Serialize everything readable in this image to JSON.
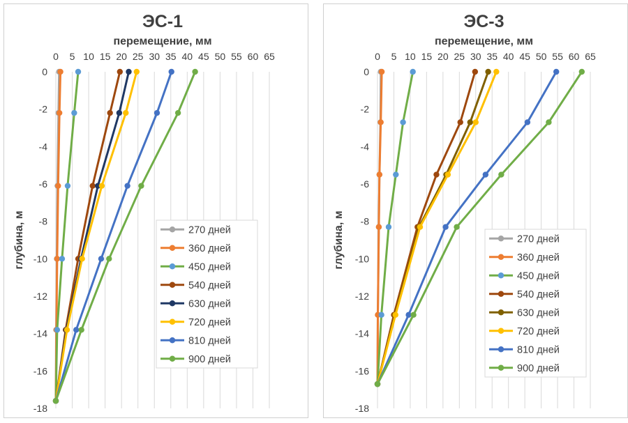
{
  "chart_data": [
    {
      "type": "line",
      "title": "ЭС-1",
      "xlabel": "перемещение, мм",
      "ylabel": "глубина, м",
      "x_ticks": [
        "0",
        "5",
        "10",
        "15",
        "20",
        "25",
        "30",
        "35",
        "40",
        "45",
        "50",
        "55",
        "60",
        "65"
      ],
      "y_ticks": [
        "0",
        "-2",
        "-4",
        "-6",
        "-8",
        "-10",
        "-12",
        "-14",
        "-16",
        "-18"
      ],
      "xlim": [
        0,
        65
      ],
      "ylim": [
        -18,
        0
      ],
      "x_axis_position": "top",
      "grid": "vertical",
      "legend_position": "bottom-right",
      "series": [
        {
          "name": "270 дней",
          "color": "#a5a5a5",
          "points": [
            [
              1,
              0
            ],
            [
              0.8,
              -2.2
            ],
            [
              0.5,
              -6.1
            ],
            [
              0.3,
              -10
            ],
            [
              0.1,
              -13.8
            ],
            [
              0,
              -17.6
            ]
          ]
        },
        {
          "name": "360 дней",
          "color": "#ed7d31",
          "points": [
            [
              1.4,
              0
            ],
            [
              1.1,
              -2.2
            ],
            [
              0.7,
              -6.1
            ],
            [
              0.4,
              -10
            ],
            [
              0.2,
              -13.8
            ],
            [
              0,
              -17.6
            ]
          ]
        },
        {
          "name": "450 дней",
          "color": "#70ad47",
          "marker_color": "#5b9bd5",
          "points": [
            [
              6.8,
              0
            ],
            [
              5.6,
              -2.2
            ],
            [
              3.6,
              -6.1
            ],
            [
              1.9,
              -10
            ],
            [
              0.4,
              -13.8
            ],
            [
              0,
              -17.6
            ]
          ]
        },
        {
          "name": "540 дней",
          "color": "#9e480e",
          "points": [
            [
              19.5,
              0
            ],
            [
              16.5,
              -2.2
            ],
            [
              11.2,
              -6.1
            ],
            [
              6.8,
              -10
            ],
            [
              3,
              -13.8
            ],
            [
              0,
              -17.6
            ]
          ]
        },
        {
          "name": "630 дней",
          "color": "#1f3864",
          "points": [
            [
              22.2,
              0
            ],
            [
              19.3,
              -2.2
            ],
            [
              12.8,
              -6.1
            ],
            [
              7.7,
              -10
            ],
            [
              3.2,
              -13.8
            ],
            [
              0,
              -17.6
            ]
          ]
        },
        {
          "name": "720 дней",
          "color": "#ffc000",
          "points": [
            [
              24.6,
              0
            ],
            [
              21.3,
              -2.2
            ],
            [
              14,
              -6.1
            ],
            [
              8,
              -10
            ],
            [
              3.4,
              -13.8
            ],
            [
              0,
              -17.6
            ]
          ]
        },
        {
          "name": "810 дней",
          "color": "#4472c4",
          "points": [
            [
              35.2,
              0
            ],
            [
              30.8,
              -2.2
            ],
            [
              21.8,
              -6.1
            ],
            [
              13.8,
              -10
            ],
            [
              6.2,
              -13.8
            ],
            [
              0,
              -17.6
            ]
          ]
        },
        {
          "name": "900 дней",
          "color": "#70ad47",
          "points": [
            [
              42.4,
              0
            ],
            [
              37.2,
              -2.2
            ],
            [
              26,
              -6.1
            ],
            [
              16.2,
              -10
            ],
            [
              7.8,
              -13.8
            ],
            [
              0,
              -17.6
            ]
          ]
        }
      ]
    },
    {
      "type": "line",
      "title": "ЭС-3",
      "xlabel": "перемещение, мм",
      "ylabel": "глубина, м",
      "x_ticks": [
        "0",
        "5",
        "10",
        "15",
        "20",
        "25",
        "30",
        "35",
        "40",
        "45",
        "50",
        "55",
        "60",
        "65"
      ],
      "y_ticks": [
        "0",
        "-2",
        "-4",
        "-6",
        "-8",
        "-10",
        "-12",
        "-14",
        "-16",
        "-18"
      ],
      "xlim": [
        0,
        65
      ],
      "ylim": [
        -18,
        0
      ],
      "x_axis_position": "top",
      "grid": "vertical",
      "legend_position": "bottom-right",
      "series": [
        {
          "name": "270 дней",
          "color": "#a5a5a5",
          "points": [
            [
              1,
              0
            ],
            [
              0.9,
              -2.7
            ],
            [
              0.6,
              -5.5
            ],
            [
              0.4,
              -8.3
            ],
            [
              0.1,
              -13
            ],
            [
              0,
              -16.7
            ]
          ]
        },
        {
          "name": "360 дней",
          "color": "#ed7d31",
          "points": [
            [
              1.3,
              0
            ],
            [
              1,
              -2.7
            ],
            [
              0.6,
              -5.5
            ],
            [
              0.4,
              -8.3
            ],
            [
              0.1,
              -13
            ],
            [
              0,
              -16.7
            ]
          ]
        },
        {
          "name": "450 дней",
          "color": "#70ad47",
          "marker_color": "#5b9bd5",
          "points": [
            [
              10.8,
              0
            ],
            [
              7.8,
              -2.7
            ],
            [
              5.6,
              -5.5
            ],
            [
              3.4,
              -8.3
            ],
            [
              1.2,
              -13
            ],
            [
              0,
              -16.7
            ]
          ]
        },
        {
          "name": "540 дней",
          "color": "#9e480e",
          "points": [
            [
              29.8,
              0
            ],
            [
              25.3,
              -2.7
            ],
            [
              18,
              -5.5
            ],
            [
              12.2,
              -8.3
            ],
            [
              5,
              -13
            ],
            [
              0,
              -16.7
            ]
          ]
        },
        {
          "name": "630 дней",
          "color": "#806000",
          "points": [
            [
              33.8,
              0
            ],
            [
              28.3,
              -2.7
            ],
            [
              21,
              -5.5
            ],
            [
              12.7,
              -8.3
            ],
            [
              5.3,
              -13
            ],
            [
              0,
              -16.7
            ]
          ]
        },
        {
          "name": "720 дней",
          "color": "#ffc000",
          "points": [
            [
              36.3,
              0
            ],
            [
              30,
              -2.7
            ],
            [
              21.5,
              -5.5
            ],
            [
              13,
              -8.3
            ],
            [
              5.5,
              -13
            ],
            [
              0,
              -16.7
            ]
          ]
        },
        {
          "name": "810 дней",
          "color": "#4472c4",
          "points": [
            [
              54.6,
              0
            ],
            [
              45.8,
              -2.7
            ],
            [
              33,
              -5.5
            ],
            [
              20.8,
              -8.3
            ],
            [
              9.5,
              -13
            ],
            [
              0,
              -16.7
            ]
          ]
        },
        {
          "name": "900 дней",
          "color": "#70ad47",
          "points": [
            [
              62.4,
              0
            ],
            [
              52.3,
              -2.7
            ],
            [
              37.8,
              -5.5
            ],
            [
              24.2,
              -8.3
            ],
            [
              11,
              -13
            ],
            [
              0,
              -16.7
            ]
          ]
        }
      ]
    }
  ]
}
